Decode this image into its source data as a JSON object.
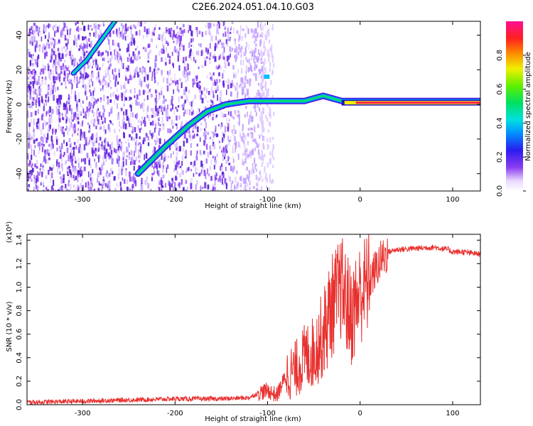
{
  "title": "C2E6.2024.051.04.10.G03",
  "colorbar": {
    "label": "Normalized spectral amplitude",
    "ticks": [
      "0.0",
      "0.2",
      "0.4",
      "0.6",
      "0.8"
    ],
    "tick_values": [
      0.0,
      0.2,
      0.4,
      0.6,
      0.8
    ]
  },
  "chart_data": [
    {
      "type": "heatmap",
      "xlabel": "Height of straight line (km)",
      "ylabel": "Frequency (Hz)",
      "xlim": [
        -360,
        130
      ],
      "ylim": [
        -50,
        48
      ],
      "xticks": [
        -300,
        -200,
        -100,
        0,
        100
      ],
      "xtick_labels": [
        "-300",
        "-200",
        "-100",
        "0",
        "100"
      ],
      "yticks": [
        -40,
        -20,
        0,
        20,
        40
      ],
      "ytick_labels": [
        "-40",
        "-20",
        "0",
        "20",
        "40"
      ],
      "colormap": "rainbow (violet→blue→cyan→green→yellow→red→magenta)",
      "features": [
        {
          "name": "Doppler track",
          "points": [
            [
              -240,
              -40
            ],
            [
              -210,
              -24
            ],
            [
              -185,
              -12
            ],
            [
              -165,
              -4
            ],
            [
              -145,
              0
            ],
            [
              -120,
              2
            ],
            [
              -100,
              2
            ],
            [
              -60,
              2
            ],
            [
              -40,
              5
            ],
            [
              -20,
              2
            ],
            [
              0,
              2
            ],
            [
              100,
              2
            ],
            [
              130,
              2
            ]
          ]
        },
        {
          "name": "aliased track",
          "points": [
            [
              -310,
              18
            ],
            [
              -295,
              26
            ],
            [
              -280,
              37
            ],
            [
              -265,
              48
            ]
          ]
        },
        {
          "name": "carrier line",
          "points": [
            [
              -20,
              1
            ],
            [
              130,
              1
            ]
          ],
          "amplitude": 0.95
        }
      ]
    },
    {
      "type": "line",
      "xlabel": "Height of straight line (km)",
      "ylabel": "SNR (10 * v/v)",
      "yscale_label": "(x10⁴)",
      "xlim": [
        -360,
        130
      ],
      "ylim": [
        0.0,
        1.45
      ],
      "xticks": [
        -300,
        -200,
        -100,
        0,
        100
      ],
      "xtick_labels": [
        "-300",
        "-200",
        "-100",
        "0",
        "100"
      ],
      "yticks": [
        0.0,
        0.2,
        0.4,
        0.6,
        0.8,
        1.0,
        1.2,
        1.4
      ],
      "ytick_labels": [
        "0.0",
        "0.2",
        "0.4",
        "0.6",
        "0.8",
        "1.0",
        "1.2",
        "1.4"
      ],
      "series": [
        {
          "color": "#e8312f",
          "x": [
            -360,
            -300,
            -250,
            -200,
            -150,
            -120,
            -110,
            -100,
            -90,
            -80,
            -70,
            -60,
            -50,
            -40,
            -30,
            -20,
            -10,
            0,
            10,
            20,
            30,
            40,
            60,
            80,
            95,
            100,
            110,
            120,
            130
          ],
          "y": [
            0.02,
            0.03,
            0.04,
            0.05,
            0.05,
            0.06,
            0.1,
            0.12,
            0.08,
            0.25,
            0.3,
            0.4,
            0.45,
            0.6,
            0.85,
            1.0,
            0.75,
            0.95,
            1.05,
            1.2,
            1.3,
            1.32,
            1.33,
            1.34,
            1.32,
            1.3,
            1.3,
            1.29,
            1.28
          ]
        }
      ]
    }
  ]
}
